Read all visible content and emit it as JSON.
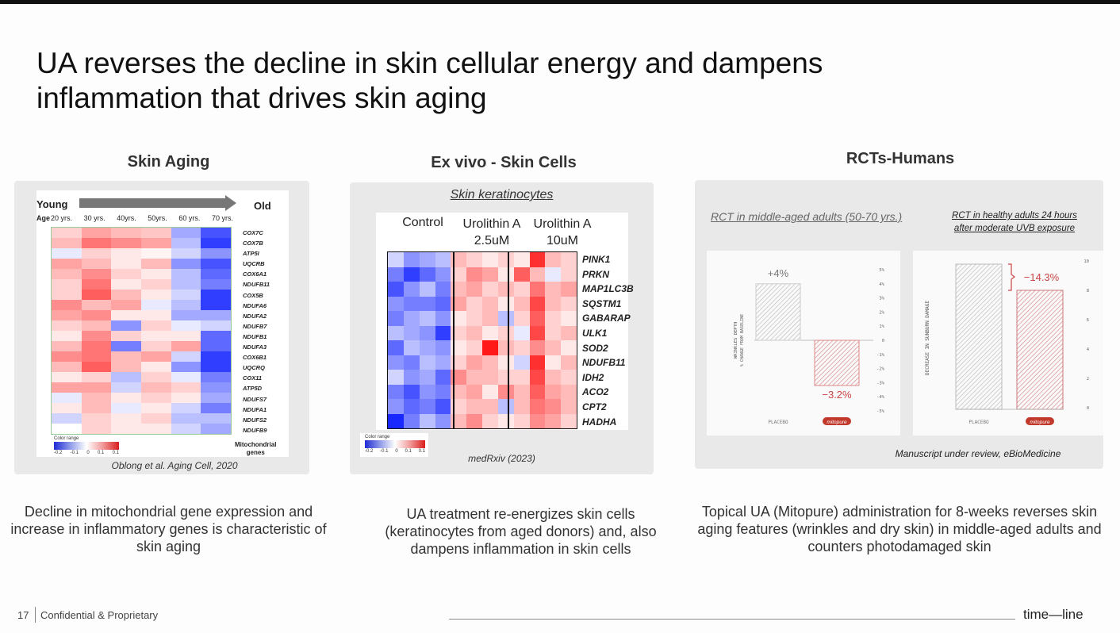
{
  "title": "UA reverses the decline in skin cellular energy and dampens inflammation that drives skin aging",
  "columns": [
    {
      "heading": "Skin Aging",
      "caption": "Decline in mitochondrial gene expression and increase in inflammatory genes is characteristic of skin aging"
    },
    {
      "heading": "Ex vivo - Skin Cells",
      "caption": "UA treatment re-energizes skin cells (keratinocytes from aged donors) and, also dampens inflammation in skin cells"
    },
    {
      "heading": "RCTs-Humans",
      "caption": "Topical UA (Mitopure) administration for 8-weeks reverses skin aging features (wrinkles and dry skin) in middle-aged adults and counters photodamaged skin"
    }
  ],
  "panel1": {
    "young": "Young",
    "old": "Old",
    "age_label": "Age",
    "ages": [
      "20 yrs.",
      "30 yrs.",
      "40yrs.",
      "50yrs.",
      "60 yrs.",
      "70 yrs."
    ],
    "genes": [
      "COX7C",
      "COX7B",
      "ATP5I",
      "UQCRB",
      "COX6A1",
      "NDUFB11",
      "COX5B",
      "NDUFA6",
      "NDUFA2",
      "NDUFB7",
      "NDUFB1",
      "NDUFA3",
      "COX6B1",
      "UQCRQ",
      "COX11",
      "ATP5D",
      "NDUFS7",
      "NDUFA1",
      "NDUFS2",
      "NDUFB9"
    ],
    "color_range": "Color range",
    "scale_ticks": [
      "-0.2",
      "-0.1",
      "0",
      "0.1",
      "0.1"
    ],
    "gene_label_line1": "Mitochondrial",
    "gene_label_line2": "genes",
    "source": "Oblong et al. Aging Cell, 2020",
    "heatmap": [
      [
        0.2,
        0.4,
        0.3,
        0.25,
        -0.4,
        -0.8
      ],
      [
        0.3,
        0.6,
        0.5,
        0.4,
        -0.3,
        -0.9
      ],
      [
        -0.1,
        0.2,
        0.1,
        0.05,
        -0.2,
        -0.5
      ],
      [
        0.4,
        0.3,
        0.1,
        0.3,
        -0.5,
        -0.8
      ],
      [
        0.3,
        0.5,
        0.2,
        0.1,
        -0.3,
        -0.7
      ],
      [
        0.2,
        0.6,
        0.1,
        0.2,
        -0.3,
        -0.6
      ],
      [
        0.2,
        0.7,
        0.3,
        0.1,
        -0.2,
        -0.9
      ],
      [
        0.5,
        0.3,
        0.4,
        -0.1,
        -0.3,
        -0.9
      ],
      [
        0.4,
        0.5,
        0.1,
        0.1,
        -0.4,
        -0.4
      ],
      [
        0.2,
        0.3,
        -0.5,
        0.2,
        -0.1,
        -0.2
      ],
      [
        0.1,
        0.5,
        0.2,
        0.1,
        0.1,
        -0.7
      ],
      [
        0.3,
        0.6,
        -0.6,
        0.2,
        0.4,
        -0.7
      ],
      [
        0.5,
        0.6,
        0.3,
        0.4,
        -0.2,
        -0.9
      ],
      [
        0.3,
        0.7,
        0.3,
        0.1,
        -0.5,
        -0.9
      ],
      [
        0.1,
        0.2,
        -0.3,
        0.2,
        -0.1,
        -0.6
      ],
      [
        0.4,
        0.4,
        -0.2,
        0.3,
        0.2,
        -0.5
      ],
      [
        -0.1,
        0.3,
        0.1,
        0.2,
        0.1,
        -0.4
      ],
      [
        0.1,
        0.3,
        -0.1,
        0.1,
        -0.2,
        -0.6
      ],
      [
        -0.2,
        0.2,
        0.1,
        0.2,
        -0.3,
        -0.3
      ],
      [
        0.0,
        0.2,
        0.1,
        0.1,
        -0.2,
        -0.4
      ]
    ]
  },
  "panel2": {
    "subtitle": "Skin keratinocytes",
    "control": "Control",
    "ua_low_line1": "Urolithin A",
    "ua_low_line2": "2.5uM",
    "ua_high_line1": "Urolithin A",
    "ua_high_line2": "10uM",
    "genes": [
      "PINK1",
      "PRKN",
      "MAP1LC3B",
      "SQSTM1",
      "GABARAP",
      "ULK1",
      "SOD2",
      "NDUFB11",
      "IDH2",
      "ACO2",
      "CPT2",
      "HADHA"
    ],
    "color_range": "Color range",
    "scale_ticks": [
      "-0.2",
      "-0.1",
      "0",
      "0.1",
      "0.1"
    ],
    "source": "medRxiv (2023)",
    "heatmap": [
      [
        -0.2,
        -0.5,
        -0.4,
        -0.3,
        0.3,
        0.2,
        0.1,
        0.2,
        0.1,
        0.9,
        0.3,
        0.2
      ],
      [
        -0.6,
        -0.9,
        -0.7,
        -0.5,
        0.2,
        0.5,
        0.4,
        0.1,
        0.7,
        0.3,
        -0.1,
        0.2
      ],
      [
        -0.8,
        -0.5,
        -0.3,
        -0.6,
        0.3,
        0.4,
        0.2,
        0.3,
        0.2,
        0.6,
        0.3,
        0.4
      ],
      [
        -0.5,
        -0.6,
        -0.6,
        -0.7,
        0.4,
        0.2,
        0.3,
        0.1,
        0.3,
        0.8,
        0.3,
        0.2
      ],
      [
        -0.6,
        -0.4,
        -0.3,
        -0.5,
        0.1,
        0.2,
        0.3,
        -0.3,
        0.2,
        0.7,
        0.2,
        0.1
      ],
      [
        -0.3,
        -0.4,
        -0.5,
        -0.9,
        0.2,
        0.3,
        0.1,
        0.2,
        -0.1,
        0.8,
        0.2,
        0.3
      ],
      [
        -0.7,
        -0.3,
        -0.4,
        -0.5,
        0.1,
        0.2,
        1.0,
        0.3,
        0.2,
        0.5,
        0.3,
        0.1
      ],
      [
        -0.5,
        -0.6,
        -0.3,
        -0.4,
        0.2,
        0.4,
        0.3,
        0.1,
        -0.2,
        0.9,
        0.1,
        0.3
      ],
      [
        -0.2,
        -0.5,
        -0.4,
        -0.7,
        0.5,
        0.3,
        0.3,
        0.2,
        0.2,
        0.8,
        0.3,
        0.2
      ],
      [
        -0.6,
        -0.8,
        -0.5,
        -0.6,
        0.3,
        0.4,
        0.1,
        0.5,
        0.3,
        0.7,
        0.4,
        0.3
      ],
      [
        -0.5,
        -0.7,
        -0.6,
        -0.8,
        0.2,
        0.3,
        0.3,
        -0.3,
        0.3,
        0.6,
        0.5,
        0.3
      ],
      [
        -1.0,
        -0.6,
        -0.3,
        -0.5,
        0.3,
        0.5,
        0.2,
        0.1,
        0.2,
        0.5,
        0.4,
        0.2
      ]
    ]
  },
  "panel3": {
    "subtitle_left": "RCT in middle-aged adults (50-70 yrs.)",
    "subtitle_right_line1": "RCT in healthy adults 24 hours",
    "subtitle_right_line2": "after moderate UVB exposure",
    "left_ylabel_line1": "WRINKLES DEPTH",
    "left_ylabel_line2": "% CHANGE FROM BASELINE",
    "right_ylabel": "DECREASE IN SUNBURN DAMAGE",
    "placebo": "PLACEBO",
    "mitopure": "mitopure",
    "left_values": {
      "placebo_label": "+4%",
      "mitopure_label": "−3.2%",
      "placebo": 4,
      "mitopure": -3.2
    },
    "left_ticks": [
      "5%",
      "4%",
      "3%",
      "2%",
      "1%",
      "0",
      "-1%",
      "-2%",
      "-3%",
      "-4%",
      "-5%"
    ],
    "right_values": {
      "delta_label": "−14.3%"
    },
    "right_ticks": [
      "10",
      "8",
      "6",
      "4",
      "2",
      "0"
    ],
    "source": "Manuscript under review, eBioMedicine"
  },
  "footer": {
    "page": "17",
    "text": "Confidential & Proprietary",
    "logo": "time—line"
  }
}
